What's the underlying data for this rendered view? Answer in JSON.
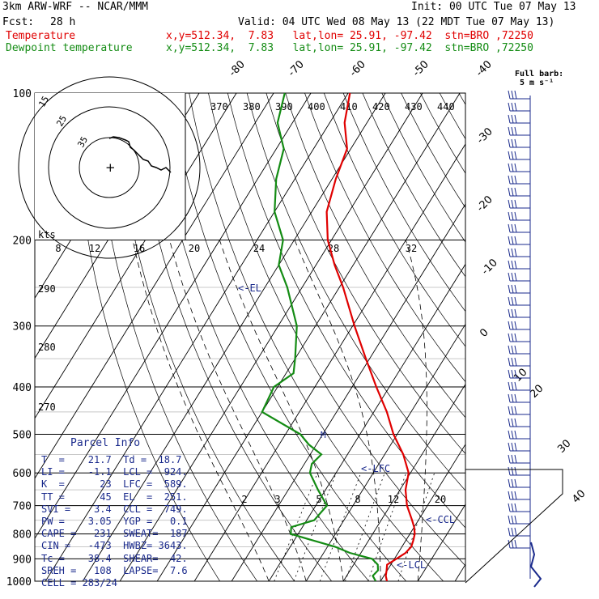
{
  "header": {
    "model": "3km ARW-WRF -- NCAR/MMM",
    "init": "Init: 00 UTC Tue 07 May 13",
    "fcst_label": "Fcst:",
    "fcst_hours": "28 h",
    "valid": "Valid: 04 UTC Wed 08 May 13 (22 MDT Tue 07 May 13)",
    "temp_line_label": "Temperature",
    "temp_line_info": "x,y=512.34,  7.83   lat,lon= 25.91, -97.42  stn=BRO ,72250",
    "dew_line_label": "Dewpoint temperature",
    "dew_line_info": "x,y=512.34,  7.83   lat,lon= 25.91, -97.42  stn=BRO ,72250",
    "barb_title_1": "Full barb:",
    "barb_title_2": "5 m s⁻¹"
  },
  "colors": {
    "temperature": "#e00000",
    "dewpoint": "#148c14",
    "annotation": "#1a2a8c",
    "grid": "#000000"
  },
  "parcel_info": {
    "title": "Parcel Info",
    "rows": [
      "T  =    21.7  Td =  18.7",
      "LI =    -1.1  LCL =  924.",
      "K  =      23  LFC =  589.",
      "TT =      45  EL  =  251.",
      "SVI =    3.4  CCL =  749.",
      "PW =    3.05  YGP =   0.1",
      "CAPE =   231  SWEAT=  187",
      "CIN =   -473  HWBZ= 3643.",
      "Tc =    38.4  SHEAR=  42.",
      "SREH =   108  LAPSE=  7.6",
      "CELL = 283/24"
    ]
  },
  "chart_data": {
    "type": "line",
    "diagram": "skew-T log-p",
    "pressure_levels": [
      "100",
      "200",
      "300",
      "400",
      "500",
      "600",
      "700",
      "800",
      "900",
      "1000"
    ],
    "top_temp_labels": [
      "-80",
      "-70",
      "-60",
      "-50",
      "-40"
    ],
    "right_temp_labels": [
      "-30",
      "-20",
      "-10",
      "0",
      "10",
      "20",
      "30",
      "40"
    ],
    "theta_labels": [
      "370",
      "380",
      "390",
      "400",
      "410",
      "420",
      "430",
      "440"
    ],
    "theta_left_labels": [
      "290",
      "280",
      "270"
    ],
    "mixing_ratio_labels": [
      "2",
      "3",
      "5",
      "8",
      "12",
      "20"
    ],
    "hodograph": {
      "ring_labels": [
        "15",
        "25",
        "35"
      ],
      "speed_labels": [
        "8",
        "12",
        "16",
        "20",
        "24",
        "28",
        "32"
      ],
      "units_label": "kts",
      "trace": [
        [
          0,
          -6
        ],
        [
          5,
          -8
        ],
        [
          12,
          -7
        ],
        [
          20,
          -4
        ],
        [
          24,
          -2
        ],
        [
          26,
          5
        ],
        [
          30,
          8
        ],
        [
          36,
          14
        ],
        [
          42,
          20
        ],
        [
          48,
          22
        ],
        [
          52,
          28
        ],
        [
          58,
          30
        ],
        [
          64,
          33
        ],
        [
          70,
          30
        ],
        [
          76,
          36
        ]
      ]
    },
    "annotations": {
      "EL": "<-EL",
      "LFC": "<-LFC",
      "CCL": "<-CCL",
      "LCL": "<-LCL"
    },
    "series": [
      {
        "name": "Temperature",
        "pressure": [
          1000,
          975,
          950,
          925,
          900,
          875,
          850,
          825,
          800,
          775,
          750,
          700,
          650,
          600,
          550,
          500,
          450,
          400,
          350,
          300,
          250,
          225,
          200,
          175,
          150,
          130,
          115,
          100
        ],
        "temperature": [
          21.7,
          20.5,
          19.8,
          19.0,
          20.5,
          22.0,
          22.5,
          22.0,
          21.3,
          20.0,
          18.3,
          14.5,
          11.5,
          9.5,
          5.0,
          -1.0,
          -6.5,
          -13.5,
          -21.0,
          -29.5,
          -39.0,
          -45.0,
          -51.0,
          -56.0,
          -59.0,
          -61.0,
          -66.0,
          -69.5
        ]
      },
      {
        "name": "Dewpoint temperature",
        "pressure": [
          1000,
          975,
          950,
          925,
          900,
          875,
          850,
          825,
          800,
          775,
          750,
          700,
          650,
          600,
          575,
          550,
          525,
          500,
          450,
          400,
          375,
          350,
          300,
          250,
          225,
          200,
          175,
          150,
          130,
          115,
          100
        ],
        "dewpoint": [
          18.7,
          17.0,
          17.5,
          16.5,
          14.0,
          7.0,
          2.0,
          -5.0,
          -12.0,
          -13.0,
          -8.0,
          -7.0,
          -12.0,
          -17.0,
          -18.0,
          -17.0,
          -22.0,
          -26.0,
          -40.0,
          -41.0,
          -38.0,
          -40.0,
          -45.0,
          -54.0,
          -60.0,
          -63.0,
          -70.0,
          -75.0,
          -78.0,
          -84.0,
          -87.0
        ]
      }
    ]
  }
}
